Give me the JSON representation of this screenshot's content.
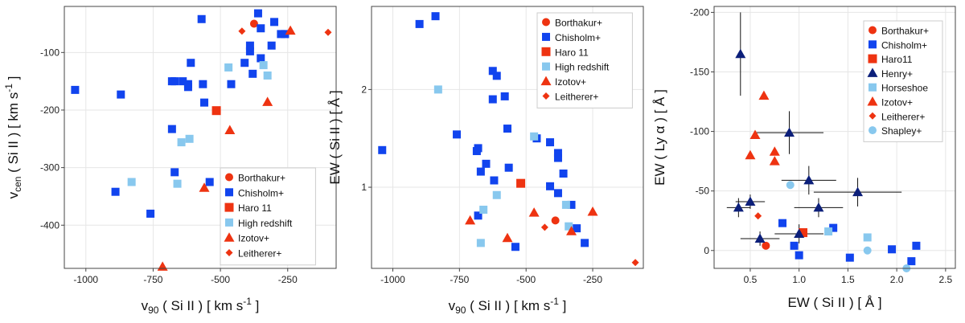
{
  "colors": {
    "red": "#ee3311",
    "blue": "#1144ee",
    "lightblue": "#88c8ee",
    "navy": "#0c1f7a"
  },
  "chart_data": [
    {
      "type": "scatter",
      "title": "",
      "xlabel": "v90 ( Si II ) [ km s-1 ]",
      "ylabel": "vcen ( Si II ) [ km s-1 ]",
      "xlim": [
        -1080,
        -70
      ],
      "ylim": [
        -475,
        -20
      ],
      "xticks": [
        -1000,
        -750,
        -500,
        -250
      ],
      "xtick_labels": [
        "-1000",
        "-750",
        "-500",
        "-250"
      ],
      "yticks": [
        -100,
        -200,
        -300,
        -400
      ],
      "ytick_labels": [
        "-100",
        "-200",
        "-300",
        "-400"
      ],
      "legend_position": "bottom-right",
      "series": [
        {
          "name": "Borthakur+",
          "marker": "circle",
          "color": "red",
          "points": [
            [
              -375,
              -50
            ]
          ]
        },
        {
          "name": "Chisholm+",
          "marker": "square",
          "color": "blue",
          "points": [
            [
              -1040,
              -165
            ],
            [
              -870,
              -173
            ],
            [
              -570,
              -42
            ],
            [
              -610,
              -118
            ],
            [
              -680,
              -150
            ],
            [
              -670,
              -150
            ],
            [
              -640,
              -150
            ],
            [
              -620,
              -155
            ],
            [
              -620,
              -160
            ],
            [
              -565,
              -155
            ],
            [
              -560,
              -187
            ],
            [
              -680,
              -233
            ],
            [
              -670,
              -308
            ],
            [
              -540,
              -325
            ],
            [
              -890,
              -342
            ],
            [
              -760,
              -380
            ],
            [
              -360,
              -32
            ],
            [
              -350,
              -58
            ],
            [
              -310,
              -88
            ],
            [
              -275,
              -68
            ],
            [
              -390,
              -98
            ],
            [
              -300,
              -47
            ],
            [
              -260,
              -68
            ],
            [
              -380,
              -137
            ],
            [
              -390,
              -88
            ],
            [
              -410,
              -118
            ],
            [
              -350,
              -110
            ],
            [
              -460,
              -155
            ]
          ]
        },
        {
          "name": "Haro 11",
          "marker": "square-big",
          "color": "red",
          "points": [
            [
              -515,
              -201
            ]
          ]
        },
        {
          "name": "High redshift",
          "marker": "square",
          "color": "lightblue",
          "points": [
            [
              -830,
              -325
            ],
            [
              -660,
              -328
            ],
            [
              -645,
              -256
            ],
            [
              -615,
              -250
            ],
            [
              -470,
              -126
            ],
            [
              -340,
              -122
            ],
            [
              -325,
              -140
            ]
          ]
        },
        {
          "name": "Izotov+",
          "marker": "triangle",
          "color": "red",
          "points": [
            [
              -715,
              -472
            ],
            [
              -560,
              -335
            ],
            [
              -465,
              -235
            ],
            [
              -325,
              -186
            ],
            [
              -240,
              -62
            ]
          ]
        },
        {
          "name": "Leitherer+",
          "marker": "diamond",
          "color": "red",
          "points": [
            [
              -420,
              -63
            ],
            [
              -100,
              -65
            ]
          ]
        }
      ]
    },
    {
      "type": "scatter",
      "title": "",
      "xlabel": "v90 ( Si II ) [ km s-1 ]",
      "ylabel": "EW ( Si II ) [ Å ]",
      "xlim": [
        -1080,
        -60
      ],
      "ylim": [
        0.17,
        2.85
      ],
      "xticks": [
        -1000,
        -750,
        -500,
        -250
      ],
      "xtick_labels": [
        "-1000",
        "-750",
        "-500",
        "-250"
      ],
      "yticks": [
        1,
        2
      ],
      "ytick_labels": [
        "1",
        "2"
      ],
      "legend_position": "top-right",
      "series": [
        {
          "name": "Borthakur+",
          "marker": "circle",
          "color": "red",
          "points": [
            [
              -390,
              0.66
            ]
          ]
        },
        {
          "name": "Chisholm+",
          "marker": "square",
          "color": "blue",
          "points": [
            [
              -900,
              2.67
            ],
            [
              -840,
              2.75
            ],
            [
              -1040,
              1.38
            ],
            [
              -760,
              1.54
            ],
            [
              -680,
              1.4
            ],
            [
              -685,
              1.37
            ],
            [
              -650,
              1.24
            ],
            [
              -670,
              1.16
            ],
            [
              -620,
              1.07
            ],
            [
              -625,
              2.19
            ],
            [
              -610,
              2.14
            ],
            [
              -625,
              1.9
            ],
            [
              -580,
              1.93
            ],
            [
              -570,
              1.6
            ],
            [
              -565,
              1.2
            ],
            [
              -460,
              1.5
            ],
            [
              -410,
              1.46
            ],
            [
              -380,
              1.35
            ],
            [
              -380,
              1.3
            ],
            [
              -360,
              1.14
            ],
            [
              -410,
              1.01
            ],
            [
              -380,
              0.94
            ],
            [
              -330,
              0.82
            ],
            [
              -540,
              0.39
            ],
            [
              -310,
              0.58
            ],
            [
              -280,
              0.43
            ],
            [
              -680,
              0.71
            ]
          ]
        },
        {
          "name": "Haro 11",
          "marker": "square-big",
          "color": "red",
          "points": [
            [
              -520,
              1.04
            ]
          ]
        },
        {
          "name": "High redshift",
          "marker": "square",
          "color": "lightblue",
          "points": [
            [
              -830,
              2.0
            ],
            [
              -670,
              0.43
            ],
            [
              -660,
              0.77
            ],
            [
              -610,
              0.92
            ],
            [
              -470,
              1.52
            ],
            [
              -350,
              0.82
            ],
            [
              -340,
              0.6
            ]
          ]
        },
        {
          "name": "Izotov+",
          "marker": "triangle",
          "color": "red",
          "points": [
            [
              -710,
              0.66
            ],
            [
              -570,
              0.48
            ],
            [
              -470,
              0.74
            ],
            [
              -330,
              0.55
            ],
            [
              -250,
              0.75
            ]
          ]
        },
        {
          "name": "Leitherer+",
          "marker": "diamond",
          "color": "red",
          "points": [
            [
              -430,
              0.59
            ],
            [
              -90,
              0.23
            ]
          ]
        }
      ]
    },
    {
      "type": "scatter",
      "title": "",
      "xlabel": "EW ( Si II ) [ Å ]",
      "ylabel": "EW ( Ly α ) [ Å ]",
      "xlim": [
        0.13,
        2.6
      ],
      "ylim": [
        15,
        -205
      ],
      "xticks": [
        0.5,
        1.0,
        1.5,
        2.0,
        2.5
      ],
      "xtick_labels": [
        "0.5",
        "1.0",
        "1.5",
        "2.0",
        "2.5"
      ],
      "yticks": [
        0,
        -50,
        -100,
        -150,
        -200
      ],
      "ytick_labels": [
        "0",
        "-50",
        "-100",
        "-150",
        "-200"
      ],
      "legend_position": "top-right",
      "series": [
        {
          "name": "Borthakur+",
          "marker": "circle",
          "color": "red",
          "points": [
            [
              0.66,
              -4
            ]
          ]
        },
        {
          "name": "Chisholm+",
          "marker": "square",
          "color": "blue",
          "points": [
            [
              0.83,
              -23
            ],
            [
              0.95,
              -4
            ],
            [
              1.0,
              4
            ],
            [
              1.35,
              -19
            ],
            [
              1.52,
              6
            ],
            [
              1.95,
              -1
            ],
            [
              2.15,
              9
            ],
            [
              2.2,
              -4
            ]
          ]
        },
        {
          "name": "Haro11",
          "marker": "square-big",
          "color": "red",
          "points": [
            [
              1.04,
              -15
            ]
          ]
        },
        {
          "name": "Henry+",
          "marker": "triangle",
          "color": "navy",
          "points": [
            [
              0.4,
              -165
            ],
            [
              0.9,
              -99
            ],
            [
              1.1,
              -59
            ],
            [
              1.6,
              -49
            ],
            [
              0.5,
              -41
            ],
            [
              1.2,
              -36
            ],
            [
              0.38,
              -36
            ],
            [
              0.6,
              -10
            ],
            [
              1.0,
              -14
            ]
          ],
          "xerr": [
            0.0,
            0.35,
            0.28,
            0.45,
            0.15,
            0.25,
            0.12,
            0.2,
            0.25
          ],
          "yerr": [
            35,
            18,
            12,
            12,
            6,
            8,
            8,
            6,
            8
          ]
        },
        {
          "name": "Horseshoe",
          "marker": "square",
          "color": "lightblue",
          "points": [
            [
              1.7,
              -11
            ],
            [
              1.3,
              -16
            ]
          ]
        },
        {
          "name": "Izotov+",
          "marker": "triangle",
          "color": "red",
          "points": [
            [
              0.64,
              -130
            ],
            [
              0.55,
              -97
            ],
            [
              0.5,
              -80
            ],
            [
              0.75,
              -83
            ],
            [
              0.75,
              -75
            ]
          ]
        },
        {
          "name": "Leitherer+",
          "marker": "diamond",
          "color": "red",
          "points": [
            [
              0.58,
              -29
            ]
          ]
        },
        {
          "name": "Shapley+",
          "marker": "circle",
          "color": "lightblue",
          "points": [
            [
              0.91,
              -55
            ],
            [
              1.7,
              0
            ],
            [
              2.1,
              15
            ]
          ]
        }
      ]
    }
  ]
}
